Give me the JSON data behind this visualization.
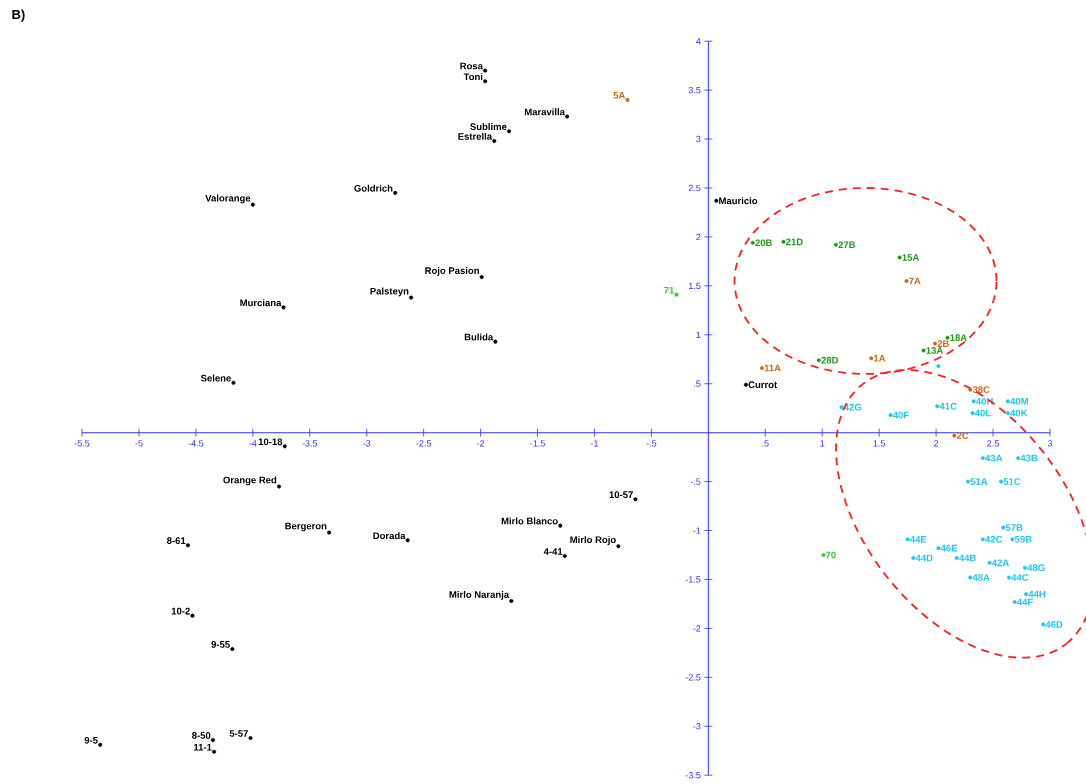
{
  "chart_data": {
    "type": "scatter",
    "xlim": [
      -5.5,
      3
    ],
    "ylim": [
      -3.5,
      4
    ],
    "xticks": [
      -5.5,
      -5,
      -4.5,
      -4,
      -3.5,
      -3,
      -2.5,
      -2,
      -1.5,
      -1,
      {
        "value": -0.5,
        "label": "-.5"
      },
      {
        "value": 0.5,
        "label": ".5"
      },
      1,
      1.5,
      2,
      2.5,
      3
    ],
    "yticks": [
      -3.5,
      -3,
      -2.5,
      -2,
      -1.5,
      -1,
      {
        "value": -0.5,
        "label": "-.5"
      },
      {
        "value": 0.5,
        "label": ".5"
      },
      1,
      1.5,
      2,
      2.5,
      3,
      3.5,
      4
    ],
    "grid": false,
    "series": [
      {
        "color": "#000000",
        "x": [
          -1.96,
          -1.96,
          -1.24,
          -1.75,
          -1.88,
          -2.75,
          -4.0,
          0.07,
          -1.99,
          -2.61,
          -3.73,
          -1.87,
          -4.17,
          0.33,
          -3.72,
          -3.77,
          -0.64,
          -1.3,
          -3.33,
          -2.64,
          -4.57,
          -0.79,
          -1.26,
          -1.73,
          -4.53,
          -4.18,
          -5.34,
          -4.35,
          -4.02,
          -4.34
        ],
        "values": [
          3.7,
          3.59,
          3.23,
          3.08,
          2.98,
          2.45,
          2.33,
          2.37,
          1.59,
          1.38,
          1.28,
          0.93,
          0.51,
          0.49,
          -0.14,
          -0.55,
          -0.68,
          -0.95,
          -1.02,
          -1.1,
          -1.15,
          -1.16,
          -1.26,
          -1.72,
          -1.87,
          -2.21,
          -3.19,
          -3.14,
          -3.12,
          -3.26
        ]
      },
      {
        "color": "#cc6a1c",
        "x": [
          -0.71,
          1.74,
          1.43,
          0.47,
          1.99,
          2.3,
          2.16
        ],
        "values": [
          3.4,
          1.55,
          0.76,
          0.66,
          0.91,
          0.44,
          -0.03
        ]
      },
      {
        "color": "#1e9a1e",
        "x": [
          0.39,
          0.66,
          1.12,
          1.68,
          0.97,
          1.89,
          2.1
        ],
        "values": [
          1.94,
          1.95,
          1.92,
          1.79,
          0.74,
          0.84,
          0.97
        ]
      },
      {
        "color": "#33cc33",
        "x": [
          -0.28,
          1.01
        ],
        "values": [
          1.41,
          -1.25
        ]
      },
      {
        "color": "#1ec8f0",
        "x": [
          2.02,
          1.17,
          2.01,
          1.6,
          2.33,
          2.63,
          2.32,
          2.63,
          2.41,
          2.72,
          2.28,
          2.57,
          2.59,
          1.75,
          2.02,
          2.41,
          2.67,
          1.8,
          2.18,
          2.47,
          2.78,
          2.3,
          2.64,
          2.79,
          2.69,
          2.94
        ],
        "values": [
          0.68,
          0.26,
          0.27,
          0.18,
          0.32,
          0.32,
          0.2,
          0.2,
          -0.26,
          -0.26,
          -0.5,
          -0.5,
          -0.97,
          -1.09,
          -1.18,
          -1.09,
          -1.09,
          -1.28,
          -1.28,
          -1.33,
          -1.38,
          -1.48,
          -1.48,
          -1.65,
          -1.73,
          -1.96
        ]
      }
    ],
    "annotations": [
      "B)",
      {
        "text": "Rosa",
        "x": -1.96,
        "y": 3.7
      },
      {
        "text": "Toni",
        "x": -1.96,
        "y": 3.59
      },
      {
        "text": "Maravilla",
        "x": -1.24,
        "y": 3.23
      },
      {
        "text": "Sublime",
        "x": -1.75,
        "y": 3.08
      },
      {
        "text": "Estrella",
        "x": -1.88,
        "y": 2.98
      },
      {
        "text": "Goldrich",
        "x": -2.75,
        "y": 2.45
      },
      {
        "text": "Valorange",
        "x": -4.0,
        "y": 2.33
      },
      {
        "text": "Mauricio",
        "x": 0.07,
        "y": 2.37
      },
      {
        "text": "Rojo Pasion",
        "x": -1.99,
        "y": 1.59
      },
      {
        "text": "Palsteyn",
        "x": -2.61,
        "y": 1.38
      },
      {
        "text": "Murciana",
        "x": -3.73,
        "y": 1.28
      },
      {
        "text": "Bulida",
        "x": -1.87,
        "y": 0.93
      },
      {
        "text": "Selene",
        "x": -4.17,
        "y": 0.51
      },
      {
        "text": "Currot",
        "x": 0.33,
        "y": 0.49
      },
      {
        "text": "10-18",
        "x": -3.72,
        "y": -0.14
      },
      {
        "text": "Orange Red",
        "x": -3.77,
        "y": -0.55
      },
      {
        "text": "10-57",
        "x": -0.64,
        "y": -0.68
      },
      {
        "text": "Mirlo Blanco",
        "x": -1.3,
        "y": -0.95
      },
      {
        "text": "Bergeron",
        "x": -3.33,
        "y": -1.02
      },
      {
        "text": "Dorada",
        "x": -2.64,
        "y": -1.1
      },
      {
        "text": "8-61",
        "x": -4.57,
        "y": -1.15
      },
      {
        "text": "Mirlo Rojo",
        "x": -0.79,
        "y": -1.16
      },
      {
        "text": "4-41",
        "x": -1.26,
        "y": -1.26
      },
      {
        "text": "Mirlo Naranja",
        "x": -1.73,
        "y": -1.72
      },
      {
        "text": "10-2",
        "x": -4.53,
        "y": -1.87
      },
      {
        "text": "9-55",
        "x": -4.18,
        "y": -2.21
      },
      {
        "text": "9-5",
        "x": -5.34,
        "y": -3.19
      },
      {
        "text": "8-50",
        "x": -4.35,
        "y": -3.14
      },
      {
        "text": "5-57",
        "x": -4.02,
        "y": -3.12
      },
      {
        "text": "11-1",
        "x": -4.34,
        "y": -3.26
      },
      {
        "text": "5A",
        "x": -0.71,
        "y": 3.4
      },
      {
        "text": "7A",
        "x": 1.74,
        "y": 1.55
      },
      {
        "text": "1A",
        "x": 1.43,
        "y": 0.76
      },
      {
        "text": "11A",
        "x": 0.47,
        "y": 0.66
      },
      {
        "text": "2B",
        "x": 1.99,
        "y": 0.91
      },
      {
        "text": "38C",
        "x": 2.3,
        "y": 0.44
      },
      {
        "text": "2C",
        "x": 2.16,
        "y": -0.03
      },
      {
        "text": "20B",
        "x": 0.39,
        "y": 1.94
      },
      {
        "text": "21D",
        "x": 0.66,
        "y": 1.95
      },
      {
        "text": "27B",
        "x": 1.12,
        "y": 1.92
      },
      {
        "text": "15A",
        "x": 1.68,
        "y": 1.79
      },
      {
        "text": "28D",
        "x": 0.97,
        "y": 0.74
      },
      {
        "text": "13A",
        "x": 1.89,
        "y": 0.84
      },
      {
        "text": "18A",
        "x": 2.1,
        "y": 0.97
      },
      {
        "text": "71",
        "x": -0.28,
        "y": 1.41
      },
      {
        "text": "70",
        "x": 1.01,
        "y": -1.25
      },
      {
        "text": "42G",
        "x": 1.17,
        "y": 0.26
      },
      {
        "text": "41C",
        "x": 2.01,
        "y": 0.27
      },
      {
        "text": "40F",
        "x": 1.6,
        "y": 0.18
      },
      {
        "text": "40H",
        "x": 2.33,
        "y": 0.32
      },
      {
        "text": "40M",
        "x": 2.63,
        "y": 0.32
      },
      {
        "text": "40L",
        "x": 2.32,
        "y": 0.2
      },
      {
        "text": "40K",
        "x": 2.63,
        "y": 0.2
      },
      {
        "text": "43A",
        "x": 2.41,
        "y": -0.26
      },
      {
        "text": "43B",
        "x": 2.72,
        "y": -0.26
      },
      {
        "text": "51A",
        "x": 2.28,
        "y": -0.5
      },
      {
        "text": "51C",
        "x": 2.57,
        "y": -0.5
      },
      {
        "text": "57B",
        "x": 2.59,
        "y": -0.97
      },
      {
        "text": "44E",
        "x": 1.75,
        "y": -1.09
      },
      {
        "text": "46E",
        "x": 2.02,
        "y": -1.18
      },
      {
        "text": "42C",
        "x": 2.41,
        "y": -1.09
      },
      {
        "text": "59B",
        "x": 2.67,
        "y": -1.09
      },
      {
        "text": "44D",
        "x": 1.8,
        "y": -1.28
      },
      {
        "text": "44B",
        "x": 2.18,
        "y": -1.28
      },
      {
        "text": "42A",
        "x": 2.47,
        "y": -1.33
      },
      {
        "text": "48G",
        "x": 2.78,
        "y": -1.38
      },
      {
        "text": "48A",
        "x": 2.3,
        "y": -1.48
      },
      {
        "text": "44C",
        "x": 2.64,
        "y": -1.48
      },
      {
        "text": "44H",
        "x": 2.79,
        "y": -1.65
      },
      {
        "text": "44F",
        "x": 2.69,
        "y": -1.73
      },
      {
        "text": "46D",
        "x": 2.94,
        "y": -1.96
      }
    ]
  }
}
